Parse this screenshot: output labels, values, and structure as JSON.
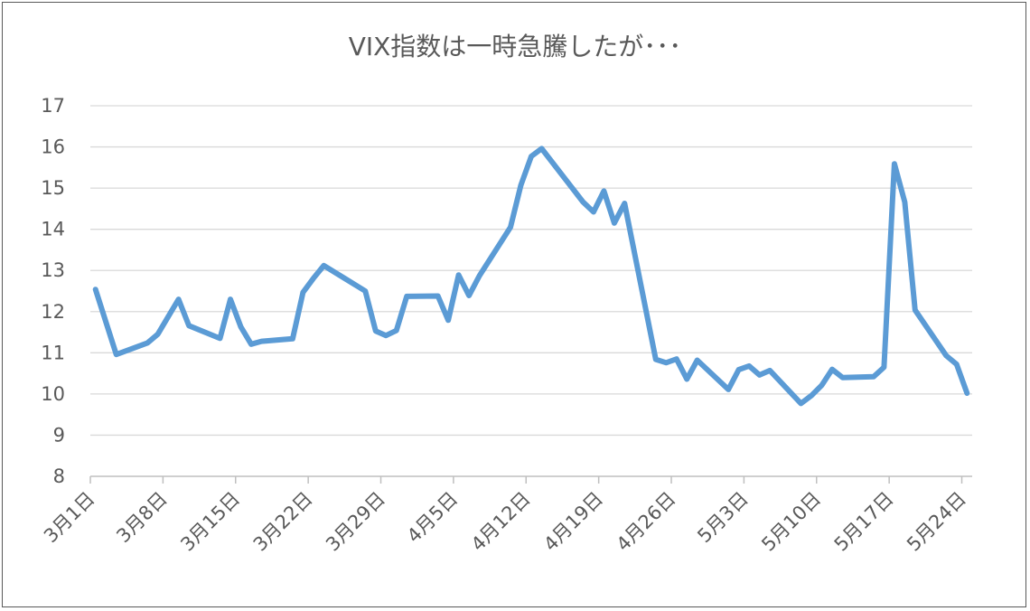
{
  "chart_data": {
    "type": "line",
    "title": "VIX指数は一時急騰したが･･･",
    "xlabel": "",
    "ylabel": "",
    "ylim": [
      8,
      17
    ],
    "yticks": [
      8,
      9,
      10,
      11,
      12,
      13,
      14,
      15,
      16,
      17
    ],
    "xrange": [
      "2017-03-01",
      "2017-05-25"
    ],
    "xtick_labels": [
      {
        "date": "2017-03-01",
        "label": "3月1日"
      },
      {
        "date": "2017-03-08",
        "label": "3月8日"
      },
      {
        "date": "2017-03-15",
        "label": "3月15日"
      },
      {
        "date": "2017-03-22",
        "label": "3月22日"
      },
      {
        "date": "2017-03-29",
        "label": "3月29日"
      },
      {
        "date": "2017-04-05",
        "label": "4月5日"
      },
      {
        "date": "2017-04-12",
        "label": "4月12日"
      },
      {
        "date": "2017-04-19",
        "label": "4月19日"
      },
      {
        "date": "2017-04-26",
        "label": "4月26日"
      },
      {
        "date": "2017-05-03",
        "label": "5月3日"
      },
      {
        "date": "2017-05-10",
        "label": "5月10日"
      },
      {
        "date": "2017-05-17",
        "label": "5月17日"
      },
      {
        "date": "2017-05-24",
        "label": "5月24日"
      }
    ],
    "grid": true,
    "series": [
      {
        "color": "#5b9bd5",
        "points": [
          [
            "2017-03-01",
            12.54
          ],
          [
            "2017-03-03",
            10.96
          ],
          [
            "2017-03-06",
            11.24
          ],
          [
            "2017-03-07",
            11.45
          ],
          [
            "2017-03-09",
            12.3
          ],
          [
            "2017-03-10",
            11.66
          ],
          [
            "2017-03-13",
            11.35
          ],
          [
            "2017-03-14",
            12.3
          ],
          [
            "2017-03-15",
            11.63
          ],
          [
            "2017-03-16",
            11.21
          ],
          [
            "2017-03-17",
            11.28
          ],
          [
            "2017-03-20",
            11.34
          ],
          [
            "2017-03-21",
            12.47
          ],
          [
            "2017-03-22",
            12.81
          ],
          [
            "2017-03-23",
            13.12
          ],
          [
            "2017-03-27",
            12.5
          ],
          [
            "2017-03-28",
            11.53
          ],
          [
            "2017-03-29",
            11.42
          ],
          [
            "2017-03-30",
            11.54
          ],
          [
            "2017-03-31",
            12.37
          ],
          [
            "2017-04-03",
            12.38
          ],
          [
            "2017-04-04",
            11.79
          ],
          [
            "2017-04-05",
            12.89
          ],
          [
            "2017-04-06",
            12.39
          ],
          [
            "2017-04-07",
            12.87
          ],
          [
            "2017-04-10",
            14.05
          ],
          [
            "2017-04-11",
            15.07
          ],
          [
            "2017-04-12",
            15.77
          ],
          [
            "2017-04-13",
            15.96
          ],
          [
            "2017-04-17",
            14.66
          ],
          [
            "2017-04-18",
            14.42
          ],
          [
            "2017-04-19",
            14.93
          ],
          [
            "2017-04-20",
            14.15
          ],
          [
            "2017-04-21",
            14.63
          ],
          [
            "2017-04-24",
            10.84
          ],
          [
            "2017-04-25",
            10.76
          ],
          [
            "2017-04-26",
            10.85
          ],
          [
            "2017-04-27",
            10.36
          ],
          [
            "2017-04-28",
            10.82
          ],
          [
            "2017-05-01",
            10.11
          ],
          [
            "2017-05-02",
            10.59
          ],
          [
            "2017-05-03",
            10.68
          ],
          [
            "2017-05-04",
            10.46
          ],
          [
            "2017-05-05",
            10.57
          ],
          [
            "2017-05-08",
            9.77
          ],
          [
            "2017-05-09",
            9.96
          ],
          [
            "2017-05-10",
            10.21
          ],
          [
            "2017-05-11",
            10.6
          ],
          [
            "2017-05-12",
            10.4
          ],
          [
            "2017-05-15",
            10.42
          ],
          [
            "2017-05-16",
            10.65
          ],
          [
            "2017-05-17",
            15.59
          ],
          [
            "2017-05-18",
            14.66
          ],
          [
            "2017-05-19",
            12.04
          ],
          [
            "2017-05-22",
            10.93
          ],
          [
            "2017-05-23",
            10.72
          ],
          [
            "2017-05-24",
            10.02
          ]
        ]
      }
    ]
  }
}
